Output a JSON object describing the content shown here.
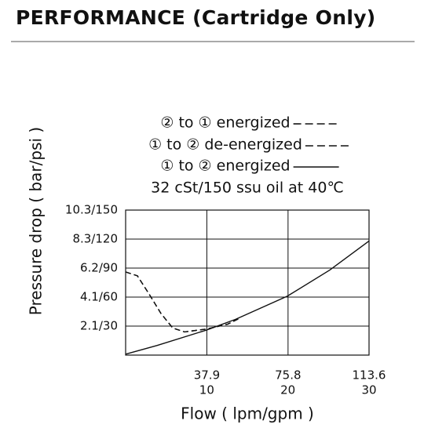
{
  "chart_data": {
    "type": "line",
    "title": "PERFORMANCE (Cartridge Only)",
    "annotation": "32 cSt/150 ssu oil at 40℃",
    "x_label": "Flow ( lpm/gpm )",
    "y_label": "Pressure drop ( bar/psi )",
    "xlim": [
      0,
      113.6
    ],
    "xticks": [
      37.9,
      75.8,
      113.6
    ],
    "x2lim": [
      0,
      30
    ],
    "x2ticks": [
      10,
      20,
      30
    ],
    "ylim": [
      0,
      150
    ],
    "yticks": [
      {
        "value": 30,
        "label": "2.1/30"
      },
      {
        "value": 60,
        "label": "4.1/60"
      },
      {
        "value": 90,
        "label": "6.2/90"
      },
      {
        "value": 120,
        "label": "8.3/120"
      },
      {
        "value": 150,
        "label": "10.3/150"
      }
    ],
    "grid": true,
    "series": [
      {
        "name": "② to ① energized",
        "color": "#111111",
        "dashed": true,
        "x": [
          0,
          5.5,
          11,
          16.5,
          22,
          27.5,
          37.9,
          47.6,
          53.1
        ],
        "values": [
          86,
          82,
          63,
          43,
          28,
          24,
          27,
          32,
          38
        ]
      },
      {
        "name": "① to ② de-energized",
        "color": "#111111",
        "dashed": true,
        "x": [
          0,
          5.5,
          11,
          16.5,
          22,
          27.5,
          37.9,
          47.6,
          53.1
        ],
        "values": [
          86,
          82,
          63,
          43,
          28,
          24,
          27,
          32,
          38
        ]
      },
      {
        "name": "① to ② energized",
        "color": "#111111",
        "dashed": false,
        "x": [
          0,
          14.7,
          37.9,
          51.3,
          75.5,
          95.3,
          113.6
        ],
        "values": [
          1,
          10,
          26,
          37,
          61,
          88,
          118
        ]
      }
    ]
  }
}
